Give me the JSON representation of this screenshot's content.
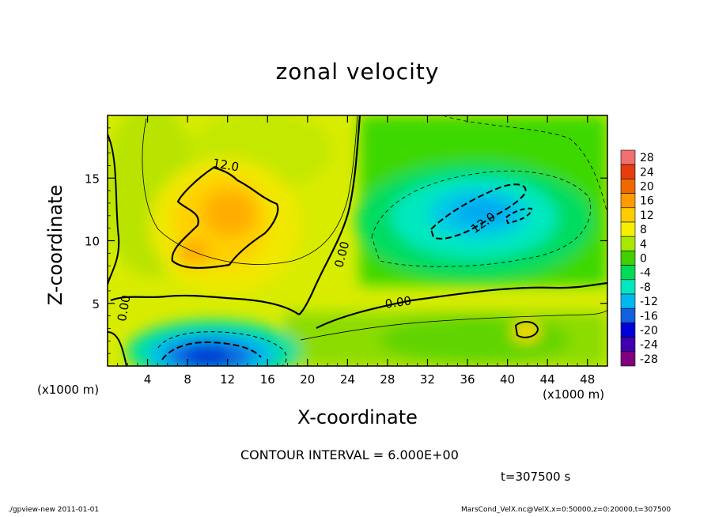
{
  "chart_data": {
    "type": "heatmap",
    "title": "zonal velocity",
    "xlabel": "X-coordinate",
    "ylabel": "Z-coordinate",
    "x_unit_label": "(x1000 m)",
    "x_ticks": [
      "4",
      "8",
      "12",
      "16",
      "20",
      "24",
      "28",
      "32",
      "36",
      "40",
      "44",
      "48"
    ],
    "y_ticks": [
      "5",
      "10",
      "15"
    ],
    "xlim": [
      0,
      50
    ],
    "ylim": [
      0,
      20
    ],
    "colorbar": {
      "levels": [
        "28",
        "24",
        "20",
        "16",
        "12",
        "8",
        "4",
        "0",
        "-4",
        "-8",
        "-12",
        "-16",
        "-20",
        "-24",
        "-28"
      ],
      "colors": [
        "#f07070",
        "#e83c10",
        "#ee6a00",
        "#ff9a00",
        "#ffcc00",
        "#f4f000",
        "#a8e800",
        "#40d000",
        "#00dc58",
        "#00e8c0",
        "#00b8f0",
        "#1060e0",
        "#0000d8",
        "#4000b0",
        "#800080"
      ]
    },
    "contour_labels": [
      "12.0",
      "0.00",
      "0.00",
      "0.00",
      "12.0"
    ],
    "contour_interval": "CONTOUR INTERVAL = 6.000E+00",
    "time": "t=307500 s"
  },
  "footer": {
    "left": "./gpview-new   2011-01-01",
    "right": "MarsCond_VelX.nc@VelX,x=0:50000,z=0:20000,t=307500"
  }
}
